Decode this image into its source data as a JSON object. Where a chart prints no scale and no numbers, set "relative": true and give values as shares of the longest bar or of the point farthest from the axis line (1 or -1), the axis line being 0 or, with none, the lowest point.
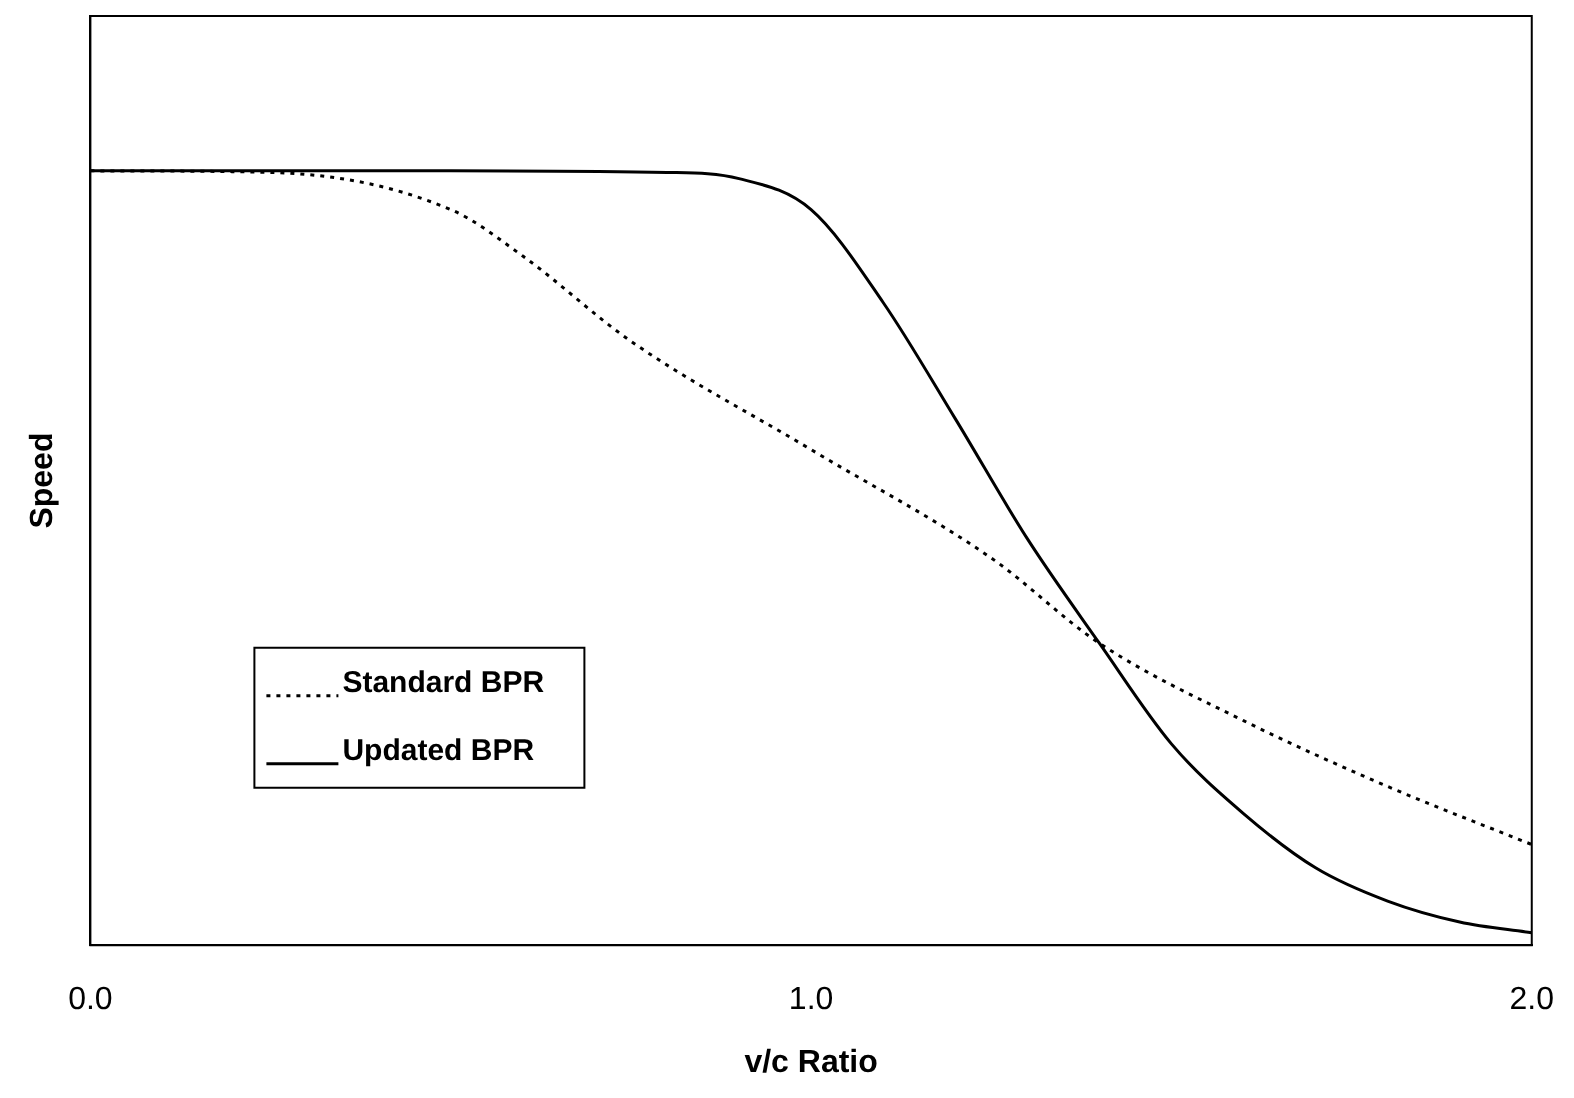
{
  "chart_data": {
    "type": "line",
    "relative": true,
    "xlabel": "v/c Ratio",
    "ylabel": "Speed",
    "xlim": [
      0,
      2
    ],
    "xticks": [
      {
        "value": 0,
        "label": "0.0"
      },
      {
        "value": 1,
        "label": "1.0"
      },
      {
        "value": 2,
        "label": "2.0"
      }
    ],
    "tick_labels": "x",
    "grid": false,
    "legend": "bottom left",
    "marker": "none",
    "series": [
      {
        "name": "Standard BPR",
        "color": "#000000",
        "line_style": "dotted",
        "x": [
          0,
          0.25,
          0.5,
          0.6,
          0.75,
          1.0,
          1.25,
          1.4,
          1.6,
          1.8,
          2.0
        ],
        "values": [
          1.0,
          0.998,
          0.95,
          0.89,
          0.78,
          0.64,
          0.5,
          0.39,
          0.29,
          0.205,
          0.13
        ]
      },
      {
        "name": "Updated BPR",
        "color": "#000000",
        "line_style": "solid",
        "x": [
          0,
          0.5,
          0.8,
          0.9,
          1.0,
          1.1,
          1.2,
          1.3,
          1.4,
          1.5,
          1.6,
          1.7,
          1.8,
          1.9,
          2.0
        ],
        "values": [
          1.0,
          1.0,
          0.998,
          0.99,
          0.95,
          0.83,
          0.68,
          0.525,
          0.39,
          0.26,
          0.17,
          0.1,
          0.057,
          0.03,
          0.016
        ]
      }
    ]
  }
}
